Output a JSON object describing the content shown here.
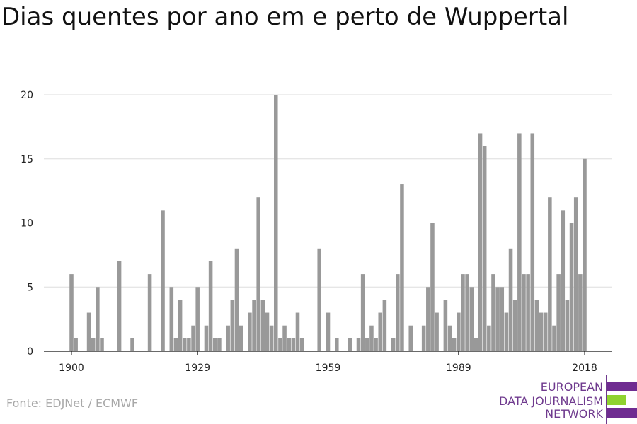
{
  "title": "Dias quentes por ano em e perto de Wuppertal",
  "source": "Fonte: EDJNet / ECMWF",
  "logo": {
    "line1": "EUROPEAN",
    "line2": "DATA JOURNALISM",
    "line3": "NETWORK",
    "colors": {
      "purple": "#6f2c91",
      "green": "#8fd22f",
      "text": "#6f3a8e"
    }
  },
  "chart_data": {
    "type": "bar",
    "title": "Dias quentes por ano em e perto de Wuppertal",
    "xlabel": "",
    "ylabel": "",
    "x_range": [
      1900,
      2018
    ],
    "x_ticks": [
      1900,
      1929,
      1959,
      1989,
      2018
    ],
    "y_ticks": [
      0,
      5,
      10,
      15,
      20
    ],
    "ylim": [
      0,
      20
    ],
    "grid": true,
    "bar_color": "#999999",
    "series": [
      {
        "values": [
          6,
          1,
          0,
          0,
          3,
          1,
          5,
          1,
          0,
          0,
          0,
          7,
          0,
          0,
          1,
          0,
          0,
          0,
          6,
          0,
          0,
          11,
          0,
          5,
          1,
          4,
          1,
          1,
          2,
          5,
          0,
          2,
          7,
          1,
          1,
          0,
          2,
          4,
          8,
          2,
          0,
          3,
          4,
          12,
          4,
          3,
          2,
          20,
          1,
          2,
          1,
          1,
          3,
          1,
          0,
          0,
          0,
          8,
          0,
          3,
          0,
          1,
          0,
          0,
          1,
          0,
          1,
          6,
          1,
          2,
          1,
          3,
          4,
          0,
          1,
          6,
          13,
          0,
          2,
          0,
          0,
          2,
          5,
          10,
          3,
          0,
          4,
          2,
          1,
          3,
          6,
          6,
          5,
          1,
          17,
          16,
          2,
          6,
          5,
          5,
          3,
          8,
          4,
          17,
          6,
          6,
          17,
          4,
          3,
          3,
          12,
          2,
          6,
          11,
          4,
          10,
          12,
          6,
          15
        ]
      }
    ]
  }
}
